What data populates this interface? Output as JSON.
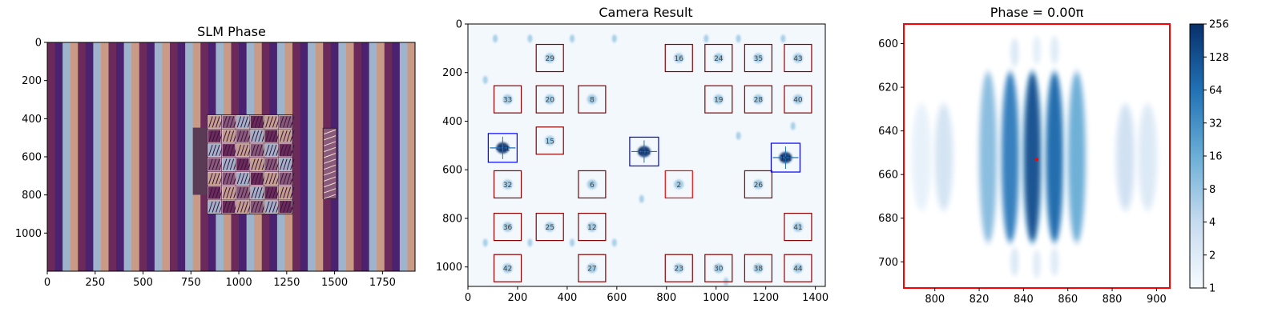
{
  "chart_data": [
    {
      "type": "heatmap",
      "title": "SLM Phase",
      "xlim": [
        0,
        1920
      ],
      "ylim": [
        1200,
        0
      ],
      "xticks": [
        "0",
        "250",
        "500",
        "750",
        "1000",
        "1250",
        "1500",
        "1750"
      ],
      "yticks": [
        "0",
        "200",
        "400",
        "600",
        "800",
        "1000"
      ],
      "stripe_colors": [
        "#6b2a5a",
        "#4a2270",
        "#9db4cc",
        "#c99a86"
      ],
      "stripe_period": 80,
      "hologram_region": {
        "x": [
          760,
          1280
        ],
        "y": [
          380,
          900
        ]
      },
      "side_region": {
        "x": [
          1440,
          1510
        ],
        "y": [
          450,
          820
        ]
      }
    },
    {
      "type": "heatmap",
      "title": "Camera Result",
      "xlim": [
        0,
        1440
      ],
      "ylim": [
        1080,
        0
      ],
      "xticks": [
        "0",
        "200",
        "400",
        "600",
        "800",
        "1000",
        "1200",
        "1400"
      ],
      "yticks": [
        "0",
        "200",
        "400",
        "600",
        "800",
        "1000"
      ],
      "spots": [
        {
          "label": "29",
          "x": 330,
          "y": 140,
          "box": "darkred"
        },
        {
          "label": "16",
          "x": 850,
          "y": 140,
          "box": "darkred"
        },
        {
          "label": "24",
          "x": 1010,
          "y": 140,
          "box": "darkred"
        },
        {
          "label": "35",
          "x": 1170,
          "y": 140,
          "box": "darkred"
        },
        {
          "label": "43",
          "x": 1330,
          "y": 140,
          "box": "darkred"
        },
        {
          "label": "33",
          "x": 160,
          "y": 310,
          "box": "darkred"
        },
        {
          "label": "20",
          "x": 330,
          "y": 310,
          "box": "darkred"
        },
        {
          "label": "8",
          "x": 500,
          "y": 310,
          "box": "darkred"
        },
        {
          "label": "19",
          "x": 1010,
          "y": 310,
          "box": "darkred"
        },
        {
          "label": "28",
          "x": 1170,
          "y": 310,
          "box": "darkred"
        },
        {
          "label": "40",
          "x": 1330,
          "y": 310,
          "box": "darkred"
        },
        {
          "label": "15",
          "x": 330,
          "y": 480,
          "box": "darkred"
        },
        {
          "label": "-1st",
          "x": 140,
          "y": 510,
          "box": "blue"
        },
        {
          "label": "0th",
          "x": 710,
          "y": 525,
          "box": "blue"
        },
        {
          "label": "1st",
          "x": 1280,
          "y": 550,
          "box": "blue"
        },
        {
          "label": "32",
          "x": 160,
          "y": 660,
          "box": "darkred"
        },
        {
          "label": "6",
          "x": 500,
          "y": 660,
          "box": "darkred"
        },
        {
          "label": "2",
          "x": 850,
          "y": 660,
          "box": "red"
        },
        {
          "label": "26",
          "x": 1170,
          "y": 660,
          "box": "darkred"
        },
        {
          "label": "36",
          "x": 160,
          "y": 835,
          "box": "darkred"
        },
        {
          "label": "25",
          "x": 330,
          "y": 835,
          "box": "darkred"
        },
        {
          "label": "12",
          "x": 500,
          "y": 835,
          "box": "darkred"
        },
        {
          "label": "41",
          "x": 1330,
          "y": 835,
          "box": "darkred"
        },
        {
          "label": "42",
          "x": 160,
          "y": 1005,
          "box": "darkred"
        },
        {
          "label": "27",
          "x": 500,
          "y": 1005,
          "box": "darkred"
        },
        {
          "label": "23",
          "x": 850,
          "y": 1005,
          "box": "darkred"
        },
        {
          "label": "30",
          "x": 1010,
          "y": 1005,
          "box": "darkred"
        },
        {
          "label": "38",
          "x": 1170,
          "y": 1005,
          "box": "darkred"
        },
        {
          "label": "44",
          "x": 1330,
          "y": 1005,
          "box": "darkred"
        }
      ]
    },
    {
      "type": "heatmap",
      "title": "Phase = 0.00π",
      "xlim": [
        786,
        906
      ],
      "ylim": [
        712,
        591
      ],
      "xticks": [
        "800",
        "820",
        "840",
        "860",
        "880",
        "900"
      ],
      "xtick_values": [
        800,
        820,
        840,
        860,
        880,
        900
      ],
      "yticks": [
        "600",
        "620",
        "640",
        "660",
        "680",
        "700"
      ],
      "ytick_values": [
        600,
        620,
        640,
        660,
        680,
        700
      ],
      "fringes": [
        {
          "x": 804,
          "y": 652,
          "intensity": 0.18
        },
        {
          "x": 824,
          "y": 652,
          "intensity": 0.42
        },
        {
          "x": 834,
          "y": 652,
          "intensity": 0.7
        },
        {
          "x": 844,
          "y": 652,
          "intensity": 0.88
        },
        {
          "x": 854,
          "y": 652,
          "intensity": 0.78
        },
        {
          "x": 864,
          "y": 652,
          "intensity": 0.5
        },
        {
          "x": 886,
          "y": 652,
          "intensity": 0.2
        },
        {
          "x": 896,
          "y": 652,
          "intensity": 0.14
        },
        {
          "x": 794,
          "y": 652,
          "intensity": 0.08
        }
      ],
      "side_lobes": [
        {
          "x": 836,
          "y": 604,
          "intensity": 0.18
        },
        {
          "x": 846,
          "y": 603,
          "intensity": 0.12
        },
        {
          "x": 854,
          "y": 603,
          "intensity": 0.16
        },
        {
          "x": 836,
          "y": 700,
          "intensity": 0.18
        },
        {
          "x": 846,
          "y": 701,
          "intensity": 0.14
        },
        {
          "x": 854,
          "y": 700,
          "intensity": 0.16
        }
      ],
      "marker": {
        "x": 846,
        "y": 653
      },
      "colorbar": {
        "ticks": [
          "256",
          "128",
          "64",
          "32",
          "16",
          "8",
          "4",
          "2",
          "1"
        ],
        "scale": "log2",
        "range": [
          1,
          256
        ]
      }
    }
  ]
}
